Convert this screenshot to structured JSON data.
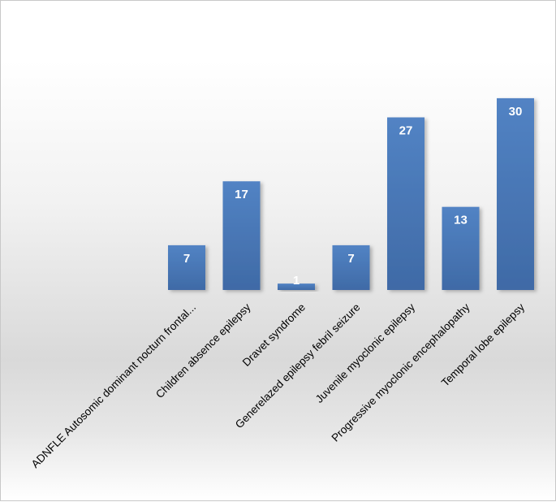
{
  "chart_data": {
    "type": "bar",
    "categories": [
      "ADNFLE Autosomic dominant nocturn frontal...",
      "Children absence epilepsy",
      "Dravet syndrome",
      "Generelazed epilepsy febril seizure",
      "Juvenile myoclonic epilepsy",
      "Progressive myoclonic encephalopathy",
      "Temporal lobe epilepsy"
    ],
    "values": [
      7,
      17,
      1,
      7,
      27,
      13,
      30
    ],
    "data_labels": [
      "7",
      "17",
      "1",
      "7",
      "27",
      "13",
      "30"
    ],
    "title": "",
    "xlabel": "",
    "ylabel": "",
    "ylim": [
      0,
      30
    ],
    "grid": false,
    "legend": "none",
    "bar_color": "#4a78b8"
  }
}
